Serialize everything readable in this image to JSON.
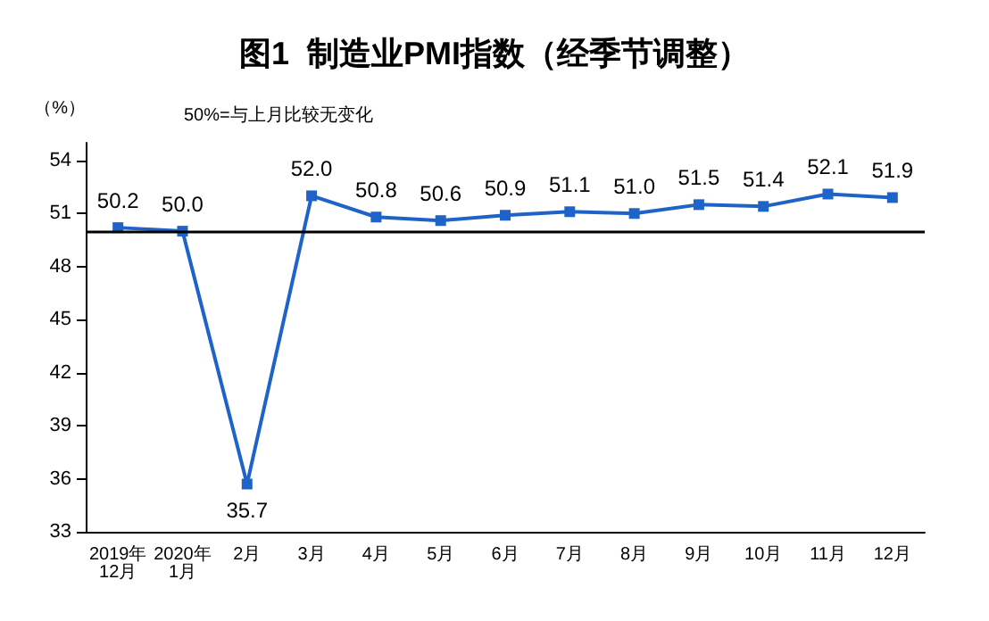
{
  "chart_data": {
    "type": "line",
    "title": "图1  制造业PMI指数（经季节调整）",
    "ylabel": "（%）",
    "annotations": [
      "50%=与上月比较无变化"
    ],
    "categories": [
      "2019年\n12月",
      "2020年\n1月",
      "2月",
      "3月",
      "4月",
      "5月",
      "6月",
      "7月",
      "8月",
      "9月",
      "10月",
      "11月",
      "12月"
    ],
    "series": [
      {
        "color": "#1e64c8",
        "values": [
          50.2,
          50.0,
          35.7,
          52.0,
          50.8,
          50.6,
          50.9,
          51.1,
          51.0,
          51.5,
          51.4,
          52.1,
          51.9
        ],
        "value_labels": [
          "50.2",
          "50.0",
          "35.7",
          "52.0",
          "50.8",
          "50.6",
          "50.9",
          "51.1",
          "51.0",
          "51.5",
          "51.4",
          "52.1",
          "51.9"
        ]
      }
    ],
    "ylim": [
      33,
      55
    ],
    "yticks": [
      33,
      36,
      39,
      42,
      45,
      48,
      51,
      54
    ],
    "ref_lines": [
      {
        "axis": "y",
        "value": 50,
        "color": "#000000"
      }
    ],
    "marker": "square",
    "line_style": "solid",
    "grid": false
  }
}
